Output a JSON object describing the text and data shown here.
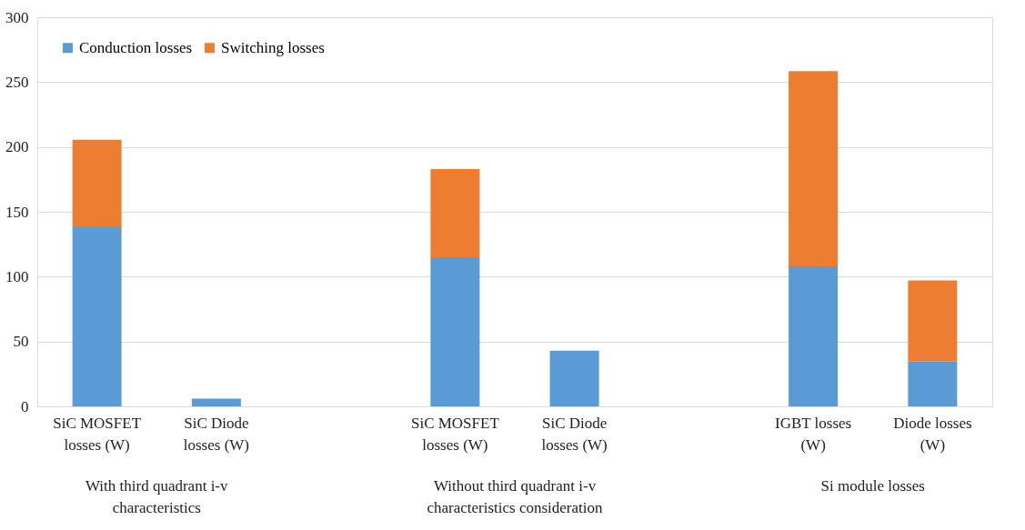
{
  "chart_data": {
    "type": "bar",
    "stacked": true,
    "categories": [
      "SiC MOSFET\nlosses (W)",
      "SiC Diode\nlosses (W)",
      null,
      "SiC MOSFET\nlosses (W)",
      "SiC Diode\nlosses  (W)",
      null,
      "IGBT losses\n(W)",
      "Diode losses\n(W)"
    ],
    "series": [
      {
        "name": "Conduction losses",
        "color": "#5b9bd5",
        "values": [
          138,
          6,
          null,
          115,
          43,
          null,
          108,
          34.5
        ]
      },
      {
        "name": "Switching losses",
        "color": "#ed7d31",
        "values": [
          67.5,
          null,
          null,
          68,
          null,
          null,
          150.5,
          62.5
        ]
      }
    ],
    "ylim": [
      0,
      300
    ],
    "yticks": [
      0,
      50,
      100,
      150,
      200,
      250,
      300
    ],
    "grid": "y",
    "legend": "top left",
    "annotations": [
      "With third quadrant i-v\ncharacteristics",
      "Without third quadrant i-v\ncharacteristics consideration",
      "Si module losses"
    ]
  }
}
